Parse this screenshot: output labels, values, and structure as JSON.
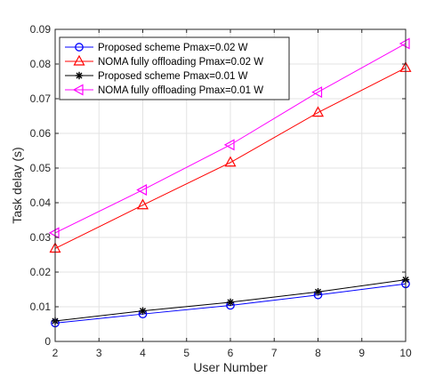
{
  "chart_data": {
    "type": "line",
    "xlabel": "User Number",
    "ylabel": "Task delay (s)",
    "xlim": [
      2,
      10
    ],
    "ylim": [
      0,
      0.09
    ],
    "xticks": [
      "2",
      "3",
      "4",
      "5",
      "6",
      "7",
      "8",
      "9",
      "10"
    ],
    "yticks": [
      "0",
      "0.01",
      "0.02",
      "0.03",
      "0.04",
      "0.05",
      "0.06",
      "0.07",
      "0.08",
      "0.09"
    ],
    "grid": true,
    "legend_position": "top-left",
    "x": [
      2,
      4,
      6,
      8,
      10
    ],
    "series": [
      {
        "name": "Proposed scheme Pmax=0.02 W",
        "values": [
          0.0053,
          0.0079,
          0.0104,
          0.0134,
          0.0166
        ],
        "color": "#0000ff",
        "marker": "circle"
      },
      {
        "name": "NOMA fully offloading Pmax=0.02 W",
        "values": [
          0.0268,
          0.0393,
          0.0516,
          0.066,
          0.0789
        ],
        "color": "#ff0000",
        "marker": "triangle-up"
      },
      {
        "name": "Proposed scheme Pmax=0.01 W",
        "values": [
          0.0059,
          0.0088,
          0.0113,
          0.0143,
          0.0178
        ],
        "color": "#000000",
        "marker": "asterisk"
      },
      {
        "name": "NOMA fully offloading Pmax=0.01 W",
        "values": [
          0.0313,
          0.0437,
          0.0567,
          0.0719,
          0.0859
        ],
        "color": "#ff00ff",
        "marker": "triangle-left"
      }
    ]
  }
}
